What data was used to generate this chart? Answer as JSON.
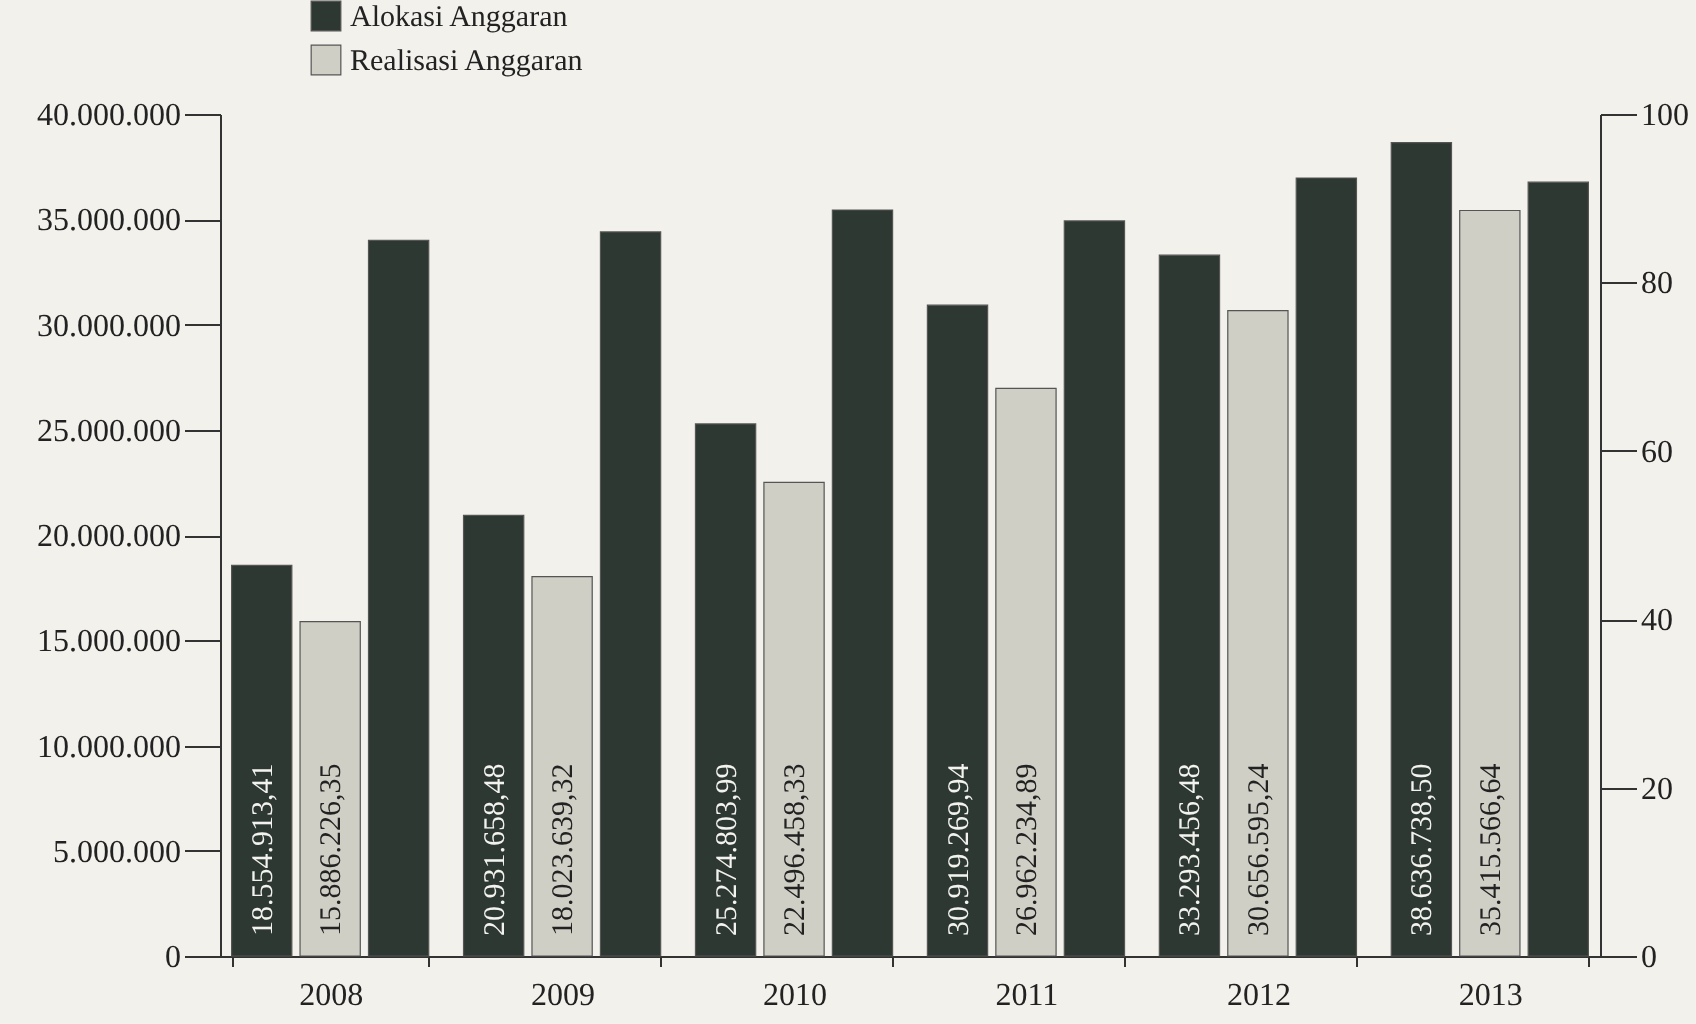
{
  "chart_data": {
    "type": "bar",
    "categories": [
      "2008",
      "2009",
      "2010",
      "2011",
      "2012",
      "2013"
    ],
    "series": [
      {
        "name": "Alokasi Anggaran",
        "color": "#2e3832",
        "values": [
          18554913.41,
          20931658.48,
          25274803.99,
          30919269.94,
          33293456.48,
          38636738.5
        ],
        "value_labels": [
          "18.554.913,41",
          "20.931.658,48",
          "25.274.803,99",
          "30.919.269,94",
          "33.293.456,48",
          "38.636.738,50"
        ]
      },
      {
        "name": "Realisasi Anggaran",
        "color": "#cfcfc6",
        "values": [
          15886226.35,
          18023639.32,
          22496458.33,
          26962234.89,
          30656595.24,
          35415566.64
        ],
        "value_labels": [
          "15.886.226,35",
          "18.023.639,32",
          "22.496.458,33",
          "26.962.234,89",
          "30.656.595,24",
          "35.415.566,64"
        ]
      },
      {
        "color": "#2e3832",
        "axis": "y2",
        "values": [
          85,
          86,
          88.6,
          87.3,
          92.4,
          91.9
        ]
      }
    ],
    "ylim": [
      0,
      40000000
    ],
    "yticks": [
      {
        "value": 0,
        "label": "0"
      },
      {
        "value": 5000000,
        "label": "5.000.000"
      },
      {
        "value": 10000000,
        "label": "10.000.000"
      },
      {
        "value": 15000000,
        "label": "15.000.000"
      },
      {
        "value": 20000000,
        "label": "20.000.000"
      },
      {
        "value": 25000000,
        "label": "25.000.000"
      },
      {
        "value": 30000000,
        "label": "30.000.000"
      },
      {
        "value": 35000000,
        "label": "35.000.000"
      },
      {
        "value": 40000000,
        "label": "40.000.000"
      }
    ],
    "y2lim": [
      0,
      100
    ],
    "y2ticks": [
      0,
      20,
      40,
      60,
      80,
      100
    ],
    "legend": "top left",
    "grid": false
  }
}
